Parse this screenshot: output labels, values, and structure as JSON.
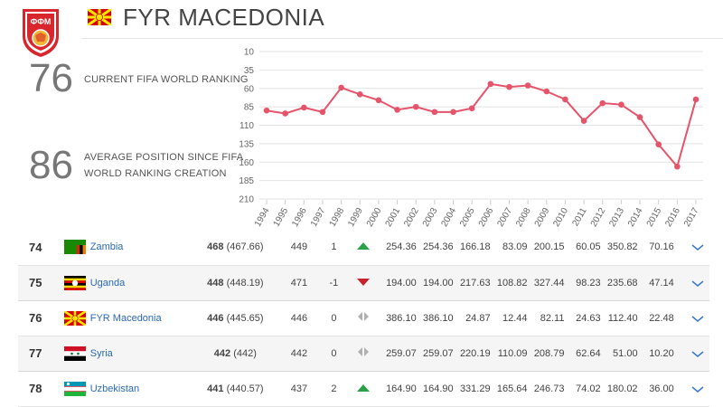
{
  "header": {
    "logo_text": "ФФМ",
    "country": "FYR MACEDONIA"
  },
  "stats": {
    "current_value": "76",
    "current_label": "CURRENT FIFA WORLD RANKING",
    "average_value": "86",
    "average_label_line1": "AVERAGE POSITION SINCE FIFA",
    "average_label_line2": "WORLD RANKING CREATION"
  },
  "chart_data": {
    "type": "line",
    "x": [
      "1994",
      "1995",
      "1996",
      "1997",
      "1998",
      "1999",
      "2000",
      "2001",
      "2002",
      "2003",
      "2004",
      "2005",
      "2006",
      "2007",
      "2008",
      "2009",
      "2010",
      "2011",
      "2012",
      "2013",
      "2014",
      "2015",
      "2016",
      "2017"
    ],
    "y": [
      90,
      94,
      86,
      92,
      59,
      68,
      76,
      89,
      85,
      92,
      92,
      87,
      54,
      58,
      56,
      64,
      75,
      104,
      80,
      82,
      99,
      136,
      166,
      75
    ],
    "yticks": [
      10,
      35,
      60,
      85,
      110,
      135,
      160,
      185,
      210
    ],
    "ylim": [
      10,
      210
    ],
    "y_inverted": true,
    "line_color": "#e5546a",
    "grid": "horizontal"
  },
  "table": {
    "rows": [
      {
        "rank": "74",
        "country": "Zambia",
        "flag": "zambia",
        "points": "468",
        "points_exact": "(467.66)",
        "prev_points": "449",
        "movement": "1",
        "trend": "up",
        "v1": "254.36",
        "v2": "254.36",
        "v3": "166.18",
        "v4": "83.09",
        "v5": "200.15",
        "v6": "60.05",
        "v7": "350.82",
        "v8": "70.16"
      },
      {
        "rank": "75",
        "country": "Uganda",
        "flag": "uganda",
        "points": "448",
        "points_exact": "(448.19)",
        "prev_points": "471",
        "movement": "-1",
        "trend": "down",
        "v1": "194.00",
        "v2": "194.00",
        "v3": "217.63",
        "v4": "108.82",
        "v5": "327.44",
        "v6": "98.23",
        "v7": "235.68",
        "v8": "47.14"
      },
      {
        "rank": "76",
        "country": "FYR Macedonia",
        "flag": "macedonia",
        "points": "446",
        "points_exact": "(445.65)",
        "prev_points": "446",
        "movement": "0",
        "trend": "same",
        "v1": "386.10",
        "v2": "386.10",
        "v3": "24.87",
        "v4": "12.44",
        "v5": "82.11",
        "v6": "24.63",
        "v7": "112.40",
        "v8": "22.48"
      },
      {
        "rank": "77",
        "country": "Syria",
        "flag": "syria",
        "points": "442",
        "points_exact": "(442)",
        "prev_points": "442",
        "movement": "0",
        "trend": "same",
        "v1": "259.07",
        "v2": "259.07",
        "v3": "220.19",
        "v4": "110.09",
        "v5": "208.79",
        "v6": "62.64",
        "v7": "51.00",
        "v8": "10.20"
      },
      {
        "rank": "78",
        "country": "Uzbekistan",
        "flag": "uzbekistan",
        "points": "441",
        "points_exact": "(440.57)",
        "prev_points": "437",
        "movement": "2",
        "trend": "up",
        "v1": "164.90",
        "v2": "164.90",
        "v3": "331.29",
        "v4": "165.64",
        "v5": "246.73",
        "v6": "74.02",
        "v7": "180.02",
        "v8": "36.00"
      }
    ],
    "expand_icon": "chevron-down-icon",
    "colors": {
      "up": "#2aa149",
      "down": "#c8232c",
      "same": "#999999",
      "link": "#2a6ab5"
    }
  }
}
